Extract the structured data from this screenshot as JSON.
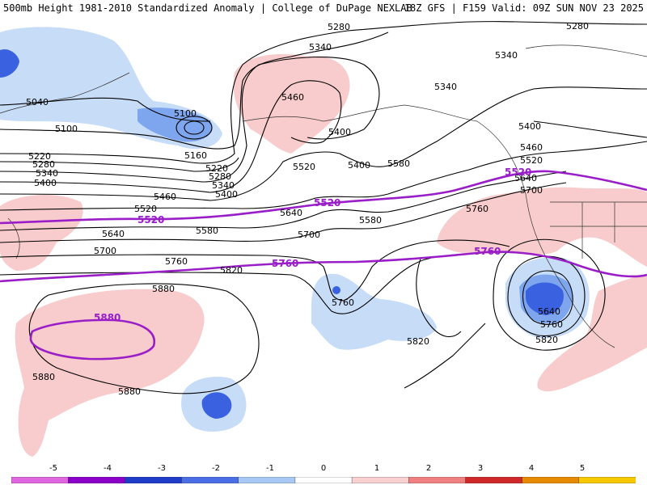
{
  "header": {
    "title": "500mb Height 1981-2010 Standardized Anomaly | College of DuPage NEXLAB",
    "run_info": "18Z GFS | F159 Valid: 09Z SUN NOV 23 2025"
  },
  "contour_labels": [
    "5040",
    "5100",
    "5100",
    "5160",
    "5220",
    "5280",
    "5340",
    "5400",
    "5220",
    "5280",
    "5340",
    "5400",
    "5460",
    "5520",
    "5580",
    "5640",
    "5700",
    "5760",
    "5820",
    "5880",
    "5880",
    "5280",
    "5340",
    "5460",
    "5400",
    "5520",
    "5580",
    "5640",
    "5700",
    "5760",
    "5820",
    "5340",
    "5400",
    "5460",
    "5520",
    "5580",
    "5640",
    "5700",
    "5760",
    "5820",
    "5280",
    "5340",
    "5400",
    "5640",
    "5760",
    "5880"
  ],
  "purple_labels": [
    "5520",
    "5520",
    "5520",
    "5760",
    "5760",
    "5880"
  ],
  "colorbar": {
    "ticks": [
      "-5",
      "-4",
      "-3",
      "-2",
      "-1",
      "0",
      "1",
      "2",
      "3",
      "4",
      "5"
    ],
    "colors": [
      "#e066e0",
      "#8a00c8",
      "#1e3cc8",
      "#4a6ee6",
      "#a8c8f5",
      "#ffffff",
      "#f8d0d0",
      "#f08080",
      "#d02828",
      "#e88a00",
      "#f5c800"
    ]
  },
  "map_colors": {
    "positive_light": "#f8cccc",
    "negative_light": "#c7dcf7",
    "negative_mid": "#7ea6ee",
    "negative_dark": "#3a62e0",
    "contour": "#000000",
    "reference": "#9a1ec8"
  }
}
